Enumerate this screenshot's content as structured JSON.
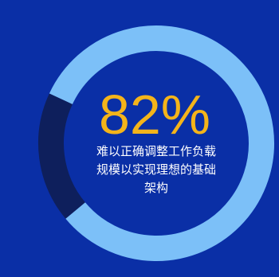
{
  "chart_data": {
    "type": "pie",
    "variant": "donut",
    "values": [
      82,
      18
    ],
    "start": "top-left, clockwise",
    "colors": {
      "background": "#0a2fa6",
      "highlight_segment": "#7cc0f8",
      "remainder_segment": "#0e1f5c",
      "stat_text": "#f4b41a",
      "caption_text": "#ffffff"
    },
    "stat_label": "82%",
    "caption_lines": [
      "难以正确调整工作负载",
      "规模以实现理想的基础",
      "架构"
    ]
  }
}
